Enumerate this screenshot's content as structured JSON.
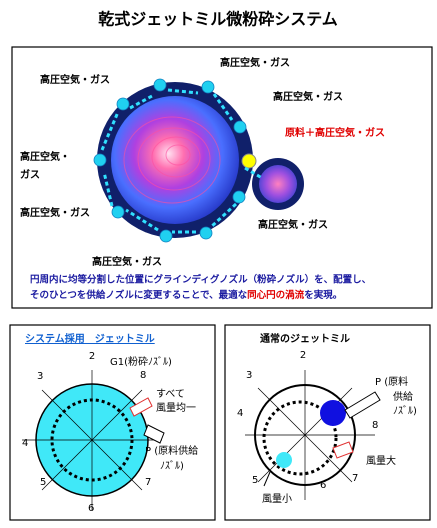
{
  "title": "乾式ジェットミル微粉砕システム",
  "top": {
    "labels": [
      "高圧空気・ガス",
      "高圧空気・ガス",
      "高圧空気・ガス",
      "原料＋高圧空気・ガス",
      "高圧空気・",
      "ガス",
      "高圧空気・ガス",
      "高圧空気・ガス",
      "高圧空気・ガス"
    ],
    "caption": {
      "line1": "円周内に均等分割した位置にグラインディグノズル（粉砕ノズル）を、配置し、",
      "line2_a": "そのひとつを供給ノズルに変更することで、最適な",
      "line2_b": "同心円の渦流",
      "line2_c": "を実現。"
    }
  },
  "left": {
    "title": "システム採用　ジェットミル",
    "numbers": [
      "2",
      "3",
      "4",
      "5",
      "6",
      "7",
      "8"
    ],
    "g1": "G1(粉砕ﾉｽﾞﾙ)",
    "note1": "すべて",
    "note2": "風量均一",
    "p1": "P (原料供給",
    "p2": "ﾉｽﾞﾙ)"
  },
  "right": {
    "title": "通常のジェットミル",
    "numbers": [
      "2",
      "3",
      "4",
      "5",
      "6",
      "7",
      "8"
    ],
    "p1": "P (原料",
    "p2": "供給",
    "p3": "ﾉｽﾞﾙ)",
    "big": "風量大",
    "small": "風量小"
  }
}
